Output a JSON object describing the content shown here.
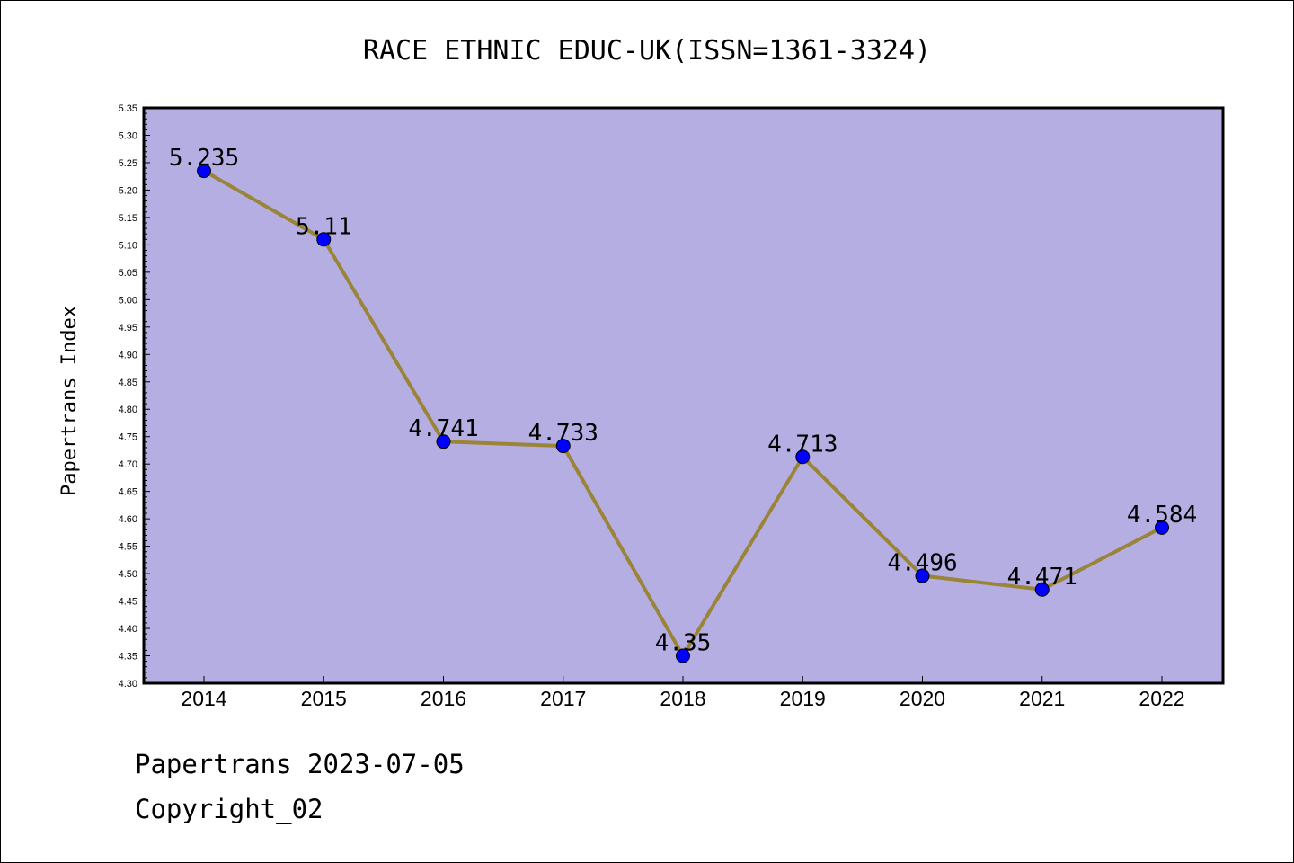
{
  "chart_data": {
    "type": "line",
    "title": "RACE ETHNIC EDUC-UK(ISSN=1361-3324)",
    "ylabel": "Papertrans Index",
    "xlabel": "",
    "categories": [
      "2014",
      "2015",
      "2016",
      "2017",
      "2018",
      "2019",
      "2020",
      "2021",
      "2022"
    ],
    "values": [
      5.235,
      5.11,
      4.741,
      4.733,
      4.35,
      4.713,
      4.496,
      4.471,
      4.584
    ],
    "data_labels": [
      "5.235",
      "5.11",
      "4.741",
      "4.733",
      "4.35",
      "4.713",
      "4.496",
      "4.471",
      "4.584"
    ],
    "ylim": [
      4.3,
      5.35
    ],
    "yticks": [
      "4.30",
      "4.35",
      "4.40",
      "4.45",
      "4.50",
      "4.55",
      "4.60",
      "4.65",
      "4.70",
      "4.75",
      "4.80",
      "4.85",
      "4.90",
      "4.95",
      "5.00",
      "5.05",
      "5.10",
      "5.15",
      "5.20",
      "5.25",
      "5.30",
      "5.35"
    ],
    "grid": false,
    "colors": {
      "plot_bg": "#b5aee3",
      "line": "#9a8437",
      "marker": "#0000ff"
    }
  },
  "footer": {
    "line1": "Papertrans 2023-07-05",
    "line2": "Copyright_02"
  }
}
